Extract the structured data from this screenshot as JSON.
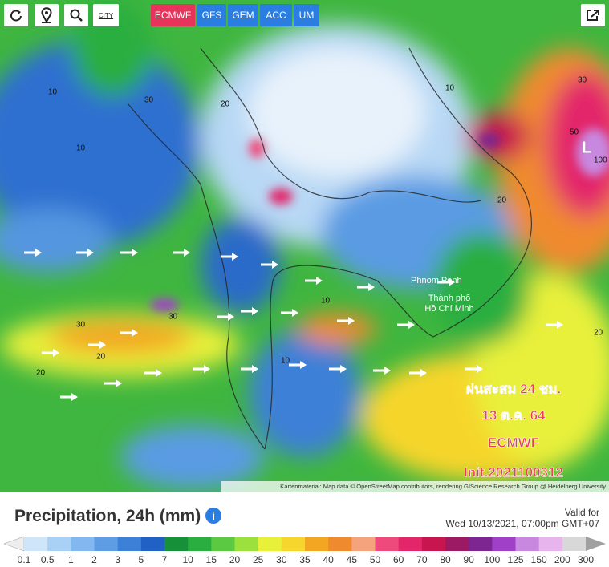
{
  "toolbar": {
    "city_icon": "CITY",
    "models": [
      "ECMWF",
      "GFS",
      "GEM",
      "ACC",
      "UM"
    ],
    "active_model": "ECMWF"
  },
  "map": {
    "places": [
      "Phnom Penh",
      "Thành phố\nHồ Chí Minh"
    ],
    "low_marker": "L",
    "contour_labels": [
      "10",
      "30",
      "10",
      "20",
      "50",
      "100",
      "30",
      "20",
      "10",
      "30",
      "20",
      "10",
      "20",
      "30",
      "10",
      "20"
    ],
    "overlay": [
      "ฝนสะสม 24 ชม.",
      "13 ต.ค. 64",
      "ECMWF",
      "Init.2021100312"
    ],
    "attribution": "Kartenmaterial: Map data © OpenStreetMap contributors, rendering GIScience Research Group @ Heidelberg University"
  },
  "legend": {
    "title": "Precipitation, 24h (mm)",
    "valid_label": "Valid for",
    "valid_time": "Wed 10/13/2021, 07:00pm GMT+07",
    "items": [
      {
        "label": "0.1",
        "color": "#cfe6fa"
      },
      {
        "label": "0.5",
        "color": "#a9d1f5"
      },
      {
        "label": "1",
        "color": "#82b8ef"
      },
      {
        "label": "2",
        "color": "#5e9de4"
      },
      {
        "label": "3",
        "color": "#3d80d7"
      },
      {
        "label": "5",
        "color": "#2160c4"
      },
      {
        "label": "7",
        "color": "#17903a"
      },
      {
        "label": "10",
        "color": "#2aae3f"
      },
      {
        "label": "15",
        "color": "#5cc943"
      },
      {
        "label": "20",
        "color": "#9be03d"
      },
      {
        "label": "25",
        "color": "#e8f03a"
      },
      {
        "label": "30",
        "color": "#f6d52c"
      },
      {
        "label": "35",
        "color": "#f3a621"
      },
      {
        "label": "40",
        "color": "#f08a2e"
      },
      {
        "label": "45",
        "color": "#f4a37c"
      },
      {
        "label": "50",
        "color": "#ef4a7c"
      },
      {
        "label": "60",
        "color": "#e3256a"
      },
      {
        "label": "70",
        "color": "#c8154f"
      },
      {
        "label": "80",
        "color": "#9b1a63"
      },
      {
        "label": "90",
        "color": "#7d2590"
      },
      {
        "label": "100",
        "color": "#a040c8"
      },
      {
        "label": "125",
        "color": "#c888e0"
      },
      {
        "label": "150",
        "color": "#e8b4ee"
      },
      {
        "label": "200",
        "color": "#d8d8d8"
      },
      {
        "label": "300",
        "color": "#a0a0a0"
      }
    ]
  }
}
